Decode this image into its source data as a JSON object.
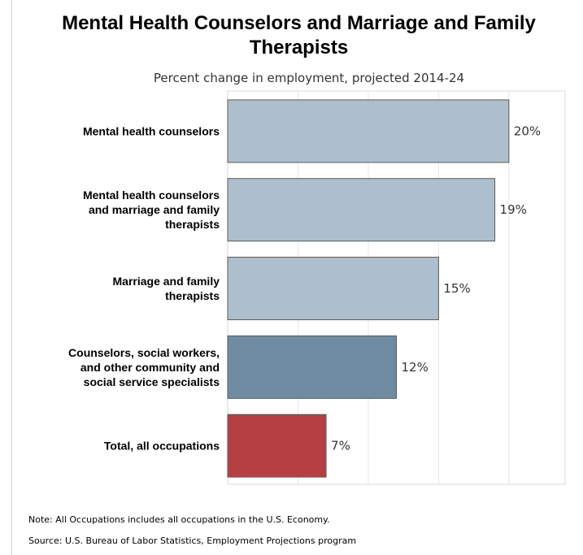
{
  "title": "Mental Health Counselors and Marriage and Family Therapists",
  "subtitle": "Percent change in employment, projected 2014-24",
  "chart_data": {
    "type": "bar",
    "orientation": "horizontal",
    "title": "Mental Health Counselors and Marriage and Family Therapists",
    "subtitle": "Percent change in employment, projected 2014-24",
    "categories": [
      "Mental health counselors",
      "Mental health counselors and marriage and family therapists",
      "Marriage and family therapists",
      "Counselors, social workers, and other community and social service specialists",
      "Total, all occupations"
    ],
    "category_lines": [
      [
        "Mental health counselors"
      ],
      [
        "Mental health counselors",
        "and marriage and family",
        "therapists"
      ],
      [
        "Marriage and family",
        "therapists"
      ],
      [
        "Counselors, social workers,",
        "and other community and",
        "social service specialists"
      ],
      [
        "Total, all occupations"
      ]
    ],
    "values": [
      20,
      19,
      15,
      12,
      7
    ],
    "value_labels": [
      "20%",
      "19%",
      "15%",
      "12%",
      "7%"
    ],
    "colors": [
      "#adbfcc",
      "#adbfcc",
      "#adbfcc",
      "#6f8ba1",
      "#b54043"
    ],
    "xlim": [
      0,
      24
    ],
    "grid": true,
    "xlabel": "",
    "ylabel": ""
  },
  "notes": {
    "note": "Note: All Occupations includes all occupations in the U.S. Economy.",
    "source": "Source: U.S. Bureau of Labor Statistics, Employment Projections program"
  }
}
